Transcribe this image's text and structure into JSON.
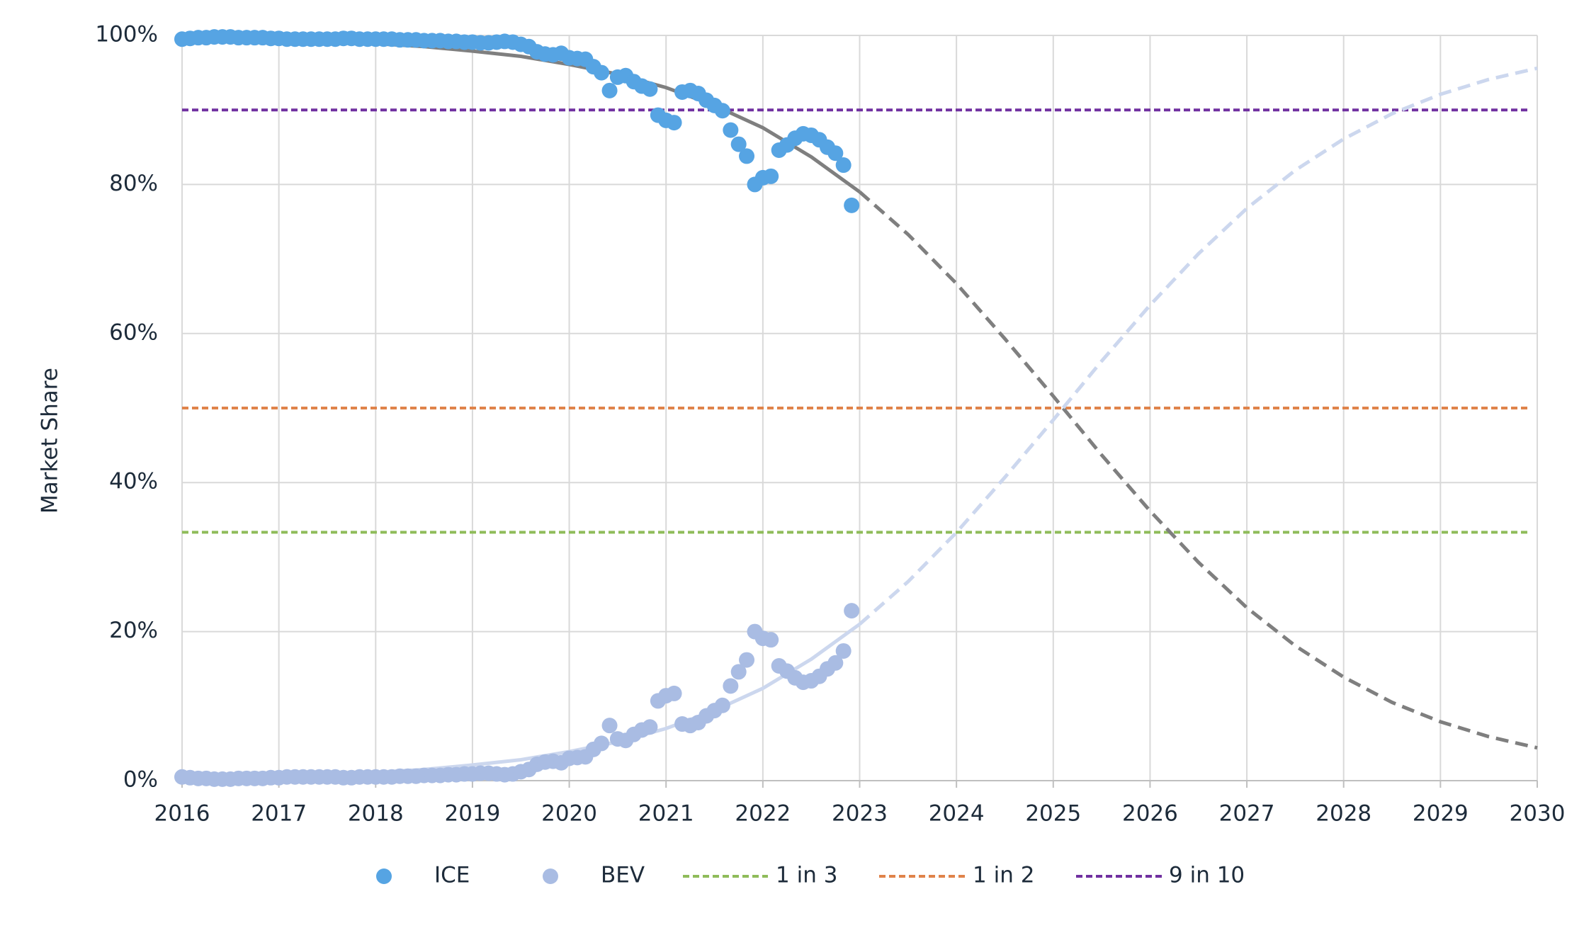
{
  "chart_data": {
    "type": "scatter",
    "y_label": "Market Share",
    "xlim": [
      2016,
      2030
    ],
    "xticks": [
      2016,
      2017,
      2018,
      2019,
      2020,
      2021,
      2022,
      2023,
      2024,
      2025,
      2026,
      2027,
      2028,
      2029,
      2030
    ],
    "ylim": [
      0,
      100
    ],
    "yticks": [
      {
        "value": 0,
        "label": "0%"
      },
      {
        "value": 20,
        "label": "20%"
      },
      {
        "value": 40,
        "label": "40%"
      },
      {
        "value": 60,
        "label": "60%"
      },
      {
        "value": 80,
        "label": "80%"
      },
      {
        "value": 100,
        "label": "100%"
      }
    ],
    "grid": true,
    "legend": "bottom",
    "x": [
      2016,
      2016.083,
      2016.167,
      2016.25,
      2016.333,
      2016.417,
      2016.5,
      2016.583,
      2016.667,
      2016.75,
      2016.833,
      2016.917,
      2017,
      2017.083,
      2017.167,
      2017.25,
      2017.333,
      2017.417,
      2017.5,
      2017.583,
      2017.667,
      2017.75,
      2017.833,
      2017.917,
      2018,
      2018.083,
      2018.167,
      2018.25,
      2018.333,
      2018.417,
      2018.5,
      2018.583,
      2018.667,
      2018.75,
      2018.833,
      2018.917,
      2019,
      2019.083,
      2019.167,
      2019.25,
      2019.333,
      2019.417,
      2019.5,
      2019.583,
      2019.667,
      2019.75,
      2019.833,
      2019.917,
      2020,
      2020.083,
      2020.167,
      2020.25,
      2020.333,
      2020.417,
      2020.5,
      2020.583,
      2020.667,
      2020.75,
      2020.833,
      2020.917,
      2021,
      2021.083,
      2021.167,
      2021.25,
      2021.333,
      2021.417,
      2021.5,
      2021.583,
      2021.667,
      2021.75,
      2021.833,
      2021.917,
      2022,
      2022.083,
      2022.167,
      2022.25,
      2022.333,
      2022.417,
      2022.5,
      2022.583,
      2022.667,
      2022.75,
      2022.833,
      2022.917
    ],
    "series": [
      {
        "name": "ICE",
        "color": "#56a4e3",
        "values": [
          99.5,
          99.6,
          99.7,
          99.7,
          99.8,
          99.8,
          99.8,
          99.7,
          99.7,
          99.7,
          99.7,
          99.6,
          99.6,
          99.5,
          99.5,
          99.5,
          99.5,
          99.5,
          99.5,
          99.5,
          99.6,
          99.6,
          99.5,
          99.5,
          99.5,
          99.5,
          99.5,
          99.4,
          99.4,
          99.4,
          99.3,
          99.3,
          99.3,
          99.2,
          99.2,
          99.1,
          99.1,
          99.0,
          99.0,
          99.1,
          99.2,
          99.1,
          98.8,
          98.5,
          97.8,
          97.5,
          97.4,
          97.6,
          97.0,
          96.9,
          96.8,
          95.8,
          95.0,
          92.6,
          94.4,
          94.6,
          93.8,
          93.2,
          92.8,
          89.3,
          88.6,
          88.3,
          92.4,
          92.6,
          92.2,
          91.3,
          90.6,
          89.9,
          87.3,
          85.4,
          83.8,
          80.0,
          80.9,
          81.1,
          84.6,
          85.3,
          86.2,
          86.8,
          86.6,
          86.0,
          85.0,
          84.2,
          82.6,
          77.2
        ]
      },
      {
        "name": "BEV",
        "color": "#a9bce3",
        "values": [
          0.5,
          0.4,
          0.3,
          0.3,
          0.2,
          0.2,
          0.2,
          0.3,
          0.3,
          0.3,
          0.3,
          0.4,
          0.4,
          0.5,
          0.5,
          0.5,
          0.5,
          0.5,
          0.5,
          0.5,
          0.4,
          0.4,
          0.5,
          0.5,
          0.5,
          0.5,
          0.5,
          0.6,
          0.6,
          0.6,
          0.7,
          0.7,
          0.7,
          0.8,
          0.8,
          0.9,
          0.9,
          1.0,
          1.0,
          0.9,
          0.8,
          0.9,
          1.2,
          1.5,
          2.2,
          2.5,
          2.6,
          2.4,
          3.0,
          3.1,
          3.2,
          4.2,
          5.0,
          7.4,
          5.6,
          5.4,
          6.2,
          6.8,
          7.2,
          10.7,
          11.4,
          11.7,
          7.6,
          7.4,
          7.8,
          8.7,
          9.4,
          10.1,
          12.7,
          14.6,
          16.2,
          20.0,
          19.1,
          18.9,
          15.4,
          14.7,
          13.8,
          13.2,
          13.4,
          14.0,
          15.0,
          15.8,
          17.4,
          22.8
        ]
      }
    ],
    "trend_lines": [
      {
        "color": "#7f7f7f",
        "dashed": false,
        "x": [
          2016,
          2016.5,
          2017,
          2017.5,
          2018,
          2018.5,
          2019,
          2019.5,
          2020,
          2020.5,
          2021,
          2021.5,
          2022,
          2022.5,
          2023
        ],
        "values": [
          99.7,
          99.6,
          99.4,
          99.2,
          98.9,
          98.5,
          97.9,
          97.2,
          96.1,
          94.8,
          93.0,
          90.6,
          87.6,
          83.7,
          79.0
        ]
      },
      {
        "color": "#7f7f7f",
        "dashed": true,
        "x": [
          2023,
          2023.5,
          2024,
          2024.5,
          2025,
          2025.5,
          2026,
          2026.5,
          2027,
          2027.5,
          2028,
          2028.5,
          2029,
          2029.5,
          2030
        ],
        "values": [
          79.0,
          73.3,
          66.7,
          59.3,
          51.6,
          43.7,
          36.2,
          29.3,
          23.2,
          18.1,
          13.9,
          10.5,
          7.9,
          5.9,
          4.4
        ]
      },
      {
        "color": "#ccd7ee",
        "dashed": false,
        "x": [
          2016,
          2016.5,
          2017,
          2017.5,
          2018,
          2018.5,
          2019,
          2019.5,
          2020,
          2020.5,
          2021,
          2021.5,
          2022,
          2022.5,
          2023
        ],
        "values": [
          0.3,
          0.4,
          0.6,
          0.8,
          1.1,
          1.5,
          2.1,
          2.8,
          3.9,
          5.2,
          7.0,
          9.4,
          12.4,
          16.3,
          21.0
        ]
      },
      {
        "color": "#ccd7ee",
        "dashed": true,
        "x": [
          2023,
          2023.5,
          2024,
          2024.5,
          2025,
          2025.5,
          2026,
          2026.5,
          2027,
          2027.5,
          2028,
          2028.5,
          2029,
          2029.5,
          2030
        ],
        "values": [
          21.0,
          26.7,
          33.3,
          40.7,
          48.4,
          56.3,
          63.8,
          70.7,
          76.8,
          81.9,
          86.1,
          89.5,
          92.1,
          94.1,
          95.6
        ]
      }
    ],
    "reference_lines": [
      {
        "name": "1 in 3",
        "value": 33.33,
        "color": "#8fbc5a"
      },
      {
        "name": "1 in 2",
        "value": 50,
        "color": "#e0834a"
      },
      {
        "name": "9 in 10",
        "value": 90,
        "color": "#7030a0"
      }
    ]
  }
}
